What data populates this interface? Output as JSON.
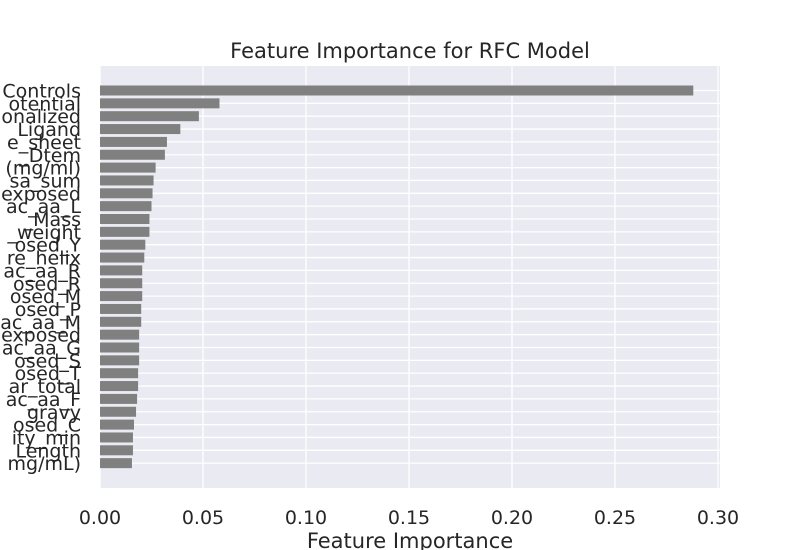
{
  "chart_data": {
    "type": "bar",
    "orientation": "horizontal",
    "title": "Feature Importance for RFC Model",
    "xlabel": "Feature Importance",
    "ylabel": "",
    "xlim": [
      0,
      0.3
    ],
    "xticks": [
      "0.00",
      "0.05",
      "0.10",
      "0.15",
      "0.20",
      "0.25",
      "0.30"
    ],
    "grid": true,
    "bar_color": "#808080",
    "background_color": "#eaeaf2",
    "categories": [
      "Controls",
      "otential",
      "onalized",
      "Ligand",
      "e_sheet",
      "_Dtem",
      "(mg/ml)",
      "sa_sum",
      "exposed",
      "ac_aa_L",
      "_Mass",
      "_weight",
      "osed_Y",
      "re_helix",
      "ac_aa_R",
      "osed_R",
      "osed_M",
      "osed_P",
      "ac_aa_M",
      "exposed",
      "ac_aa_G",
      "osed_S",
      "osed_T",
      "ar_total",
      "ac_aa_F",
      "gravy",
      "osed_C",
      "ity_min",
      "Length",
      "mg/mL)"
    ],
    "values": [
      0.288,
      0.058,
      0.048,
      0.039,
      0.0325,
      0.0315,
      0.027,
      0.026,
      0.0255,
      0.025,
      0.024,
      0.024,
      0.022,
      0.0215,
      0.0205,
      0.0205,
      0.0205,
      0.02,
      0.02,
      0.019,
      0.019,
      0.019,
      0.0185,
      0.0185,
      0.018,
      0.0175,
      0.0165,
      0.016,
      0.016,
      0.0155
    ]
  }
}
